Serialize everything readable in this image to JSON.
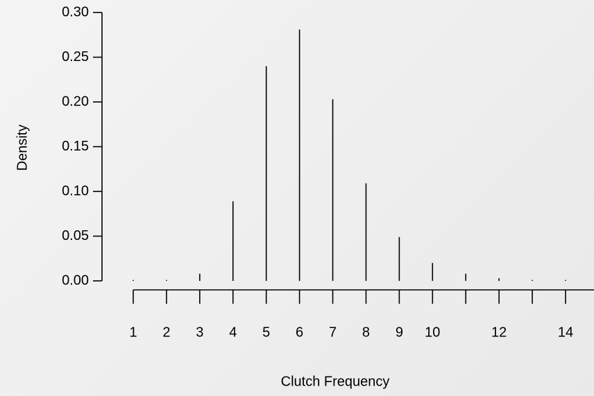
{
  "chart_data": {
    "type": "spike",
    "x_label": "Clutch Frequency",
    "y_label": "Density",
    "x": [
      1,
      2,
      3,
      4,
      5,
      6,
      7,
      8,
      9,
      10,
      11,
      12,
      13,
      14
    ],
    "values": [
      0.001,
      0.001,
      0.008,
      0.089,
      0.24,
      0.281,
      0.203,
      0.109,
      0.049,
      0.02,
      0.008,
      0.003,
      0.001,
      0.001
    ],
    "color": "#000000",
    "xlim": [
      1,
      14
    ],
    "xticks": [
      1,
      2,
      3,
      4,
      5,
      6,
      7,
      8,
      9,
      10,
      {
        "value": 11,
        "label": null
      },
      12,
      {
        "value": 13,
        "label": null
      },
      14
    ],
    "ylim": [
      0,
      0.3
    ],
    "yticks": [
      {
        "value": 0,
        "label": "0.00"
      },
      0.05,
      {
        "value": 0.1,
        "label": "0.10"
      },
      0.15,
      {
        "value": 0.2,
        "label": "0.20"
      },
      0.25,
      {
        "value": 0.3,
        "label": "0.30"
      }
    ]
  }
}
